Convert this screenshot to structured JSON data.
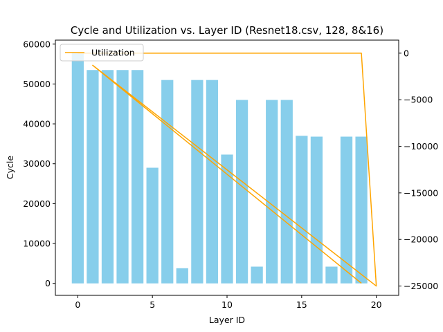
{
  "chart_data": {
    "type": "bar",
    "title": "Cycle and Utilization vs. Layer ID (Resnet18.csv, 128, 8&16)",
    "xlabel": "Layer ID",
    "ylabel": "Cycle",
    "xlim": [
      -1.5,
      21.5
    ],
    "ylim": [
      -3000,
      61000
    ],
    "y2lim": [
      -26000,
      1400
    ],
    "x_ticks": [
      0,
      5,
      10,
      15,
      20
    ],
    "y_ticks": [
      0,
      10000,
      20000,
      30000,
      40000,
      50000,
      60000
    ],
    "y2_ticks": [
      0,
      -5000,
      -10000,
      -15000,
      -20000,
      -25000
    ],
    "categories": [
      0,
      1,
      2,
      3,
      4,
      5,
      6,
      7,
      8,
      9,
      10,
      11,
      12,
      13,
      14,
      15,
      16,
      17,
      18,
      19
    ],
    "series": [
      {
        "kind": "bar",
        "axis": "left",
        "color": "#87CEEB",
        "values": [
          57800,
          53500,
          53500,
          53500,
          53500,
          29000,
          51000,
          3800,
          51000,
          51000,
          32300,
          46000,
          4200,
          46000,
          46000,
          37000,
          36800,
          4200,
          36800,
          36800
        ]
      },
      {
        "name": "Utilization",
        "kind": "line",
        "axis": "right",
        "color": "#FFA500",
        "x": [
          0,
          1,
          2,
          3,
          4,
          5,
          6,
          7,
          8,
          9,
          10,
          11,
          12,
          13,
          14,
          15,
          16,
          17,
          18,
          19,
          20,
          1,
          2,
          3,
          4,
          5,
          6,
          7,
          8,
          9,
          10,
          11,
          12,
          13,
          14,
          15,
          16,
          17,
          18,
          19
        ],
        "values": [
          0,
          0,
          0,
          0,
          0,
          0,
          0,
          0,
          0,
          0,
          0,
          0,
          0,
          0,
          0,
          0,
          0,
          0,
          0,
          0,
          -25000,
          -1300,
          -2600,
          -3900,
          -5200,
          -6500,
          -7800,
          -9100,
          -10400,
          -11700,
          -13000,
          -14300,
          -15600,
          -16900,
          -18200,
          -19500,
          -20800,
          -22100,
          -23400,
          -24700
        ]
      }
    ],
    "legend": {
      "position": "top-left",
      "entries": [
        "Utilization"
      ]
    },
    "grid": false
  }
}
